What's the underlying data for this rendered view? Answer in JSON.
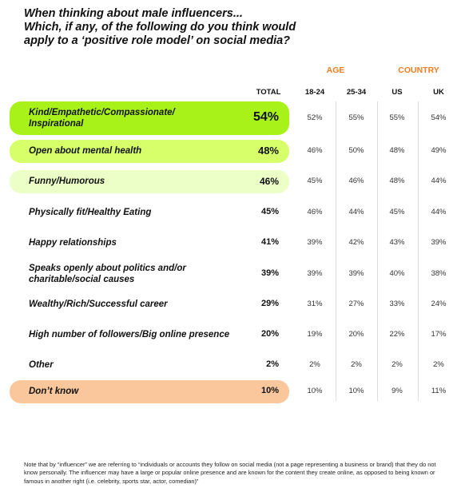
{
  "title_lines": [
    "When thinking about male influencers...",
    "Which, if any, of the following do you think would",
    "apply to a ‘positive role model’ on social media?"
  ],
  "groups": {
    "age": "AGE",
    "country": "COUNTRY"
  },
  "columns": [
    "TOTAL",
    "18-24",
    "25-34",
    "US",
    "UK"
  ],
  "colors": {
    "accent": "#f47c20",
    "highlight_1": "#a8f21a",
    "highlight_2": "#d6ff6a",
    "highlight_3": "#ecffc6",
    "dont_know": "#f9c79b"
  },
  "chart_data": {
    "type": "table",
    "title": "When thinking about male influencers... Which, if any, of the following do you think would apply to a ‘positive role model’ on social media?",
    "column_groups": [
      {
        "name": "AGE",
        "columns": [
          "18-24",
          "25-34"
        ]
      },
      {
        "name": "COUNTRY",
        "columns": [
          "US",
          "UK"
        ]
      }
    ],
    "columns": [
      "TOTAL",
      "18-24",
      "25-34",
      "US",
      "UK"
    ],
    "rows": [
      {
        "label_lines": [
          "Kind/Empathetic/Compassionate/",
          "Inspirational"
        ],
        "values": [
          "54%",
          "52%",
          "55%",
          "55%",
          "54%"
        ]
      },
      {
        "label_lines": [
          "Open about mental health"
        ],
        "values": [
          "48%",
          "46%",
          "50%",
          "48%",
          "49%"
        ]
      },
      {
        "label_lines": [
          "Funny/Humorous"
        ],
        "values": [
          "46%",
          "45%",
          "46%",
          "48%",
          "44%"
        ]
      },
      {
        "label_lines": [
          "Physically fit/Healthy Eating"
        ],
        "values": [
          "45%",
          "46%",
          "44%",
          "45%",
          "44%"
        ]
      },
      {
        "label_lines": [
          "Happy relationships"
        ],
        "values": [
          "41%",
          "39%",
          "42%",
          "43%",
          "39%"
        ]
      },
      {
        "label_lines": [
          "Speaks openly about politics and/or",
          "charitable/social causes"
        ],
        "values": [
          "39%",
          "39%",
          "39%",
          "40%",
          "38%"
        ]
      },
      {
        "label_lines": [
          "Wealthy/Rich/Successful career"
        ],
        "values": [
          "29%",
          "31%",
          "27%",
          "33%",
          "24%"
        ]
      },
      {
        "label_lines": [
          "High number of followers/Big online presence"
        ],
        "values": [
          "20%",
          "19%",
          "20%",
          "22%",
          "17%"
        ]
      },
      {
        "label_lines": [
          "Other"
        ],
        "values": [
          "2%",
          "2%",
          "2%",
          "2%",
          "2%"
        ]
      },
      {
        "label_lines": [
          "Don’t know"
        ],
        "values": [
          "10%",
          "10%",
          "10%",
          "9%",
          "11%"
        ]
      }
    ]
  },
  "footnote": "Note that by “influencer” we are referring to “individuals or accounts they follow on social media (not a page representing a business or brand) that they do not know personally. The influencer may have a large or popular online presence and are known for the content they create online, as opposed to being known or famous in another right (i.e. celebrity, sports star, actor, comedian)”"
}
